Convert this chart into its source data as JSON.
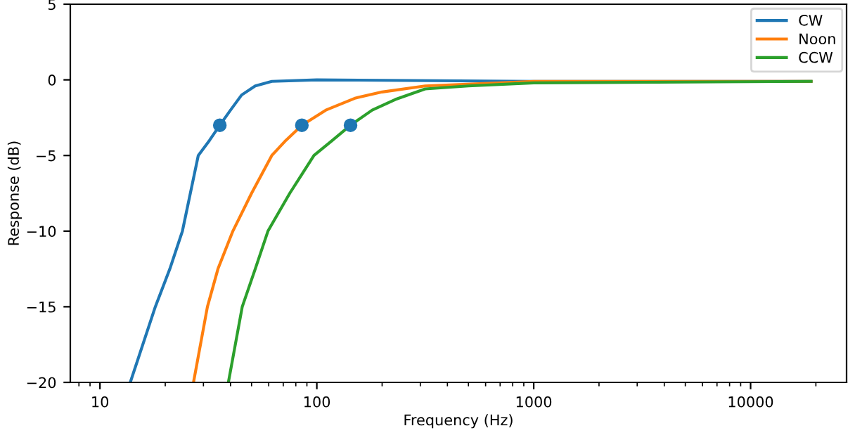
{
  "chart_data": {
    "type": "line",
    "xlabel": "Frequency (Hz)",
    "ylabel": "Response (dB)",
    "log": "x",
    "xlim": [
      7.3,
      27700
    ],
    "xticks": [
      10,
      100,
      1000,
      10000
    ],
    "ylim": [
      -20,
      5
    ],
    "yticks": [
      -20,
      -15,
      -10,
      -5,
      0,
      5
    ],
    "grid": false,
    "legend": "top right",
    "marker": "none",
    "line_style": "solid",
    "series": [
      {
        "name": "CW",
        "color": "#1f77b4",
        "x": [
          13.8,
          18,
          21,
          24,
          28.4,
          32,
          35.7,
          40,
          45,
          52,
          62,
          100,
          1000,
          19000
        ],
        "values": [
          -20,
          -15,
          -12.5,
          -10,
          -5,
          -4,
          -3,
          -2,
          -1,
          -0.4,
          -0.1,
          0,
          -0.1,
          -0.1
        ]
      },
      {
        "name": "Noon",
        "color": "#ff7f0e",
        "x": [
          27,
          31.3,
          35,
          41,
          50,
          62,
          72,
          85.3,
          110,
          151,
          200,
          316,
          1000,
          19000
        ],
        "values": [
          -20,
          -15,
          -12.5,
          -10,
          -7.5,
          -5,
          -4,
          -3,
          -2,
          -1.2,
          -0.8,
          -0.4,
          -0.1,
          -0.1
        ]
      },
      {
        "name": "CCW",
        "color": "#2ca02c",
        "x": [
          39.1,
          45.3,
          52,
          59.5,
          75,
          97,
          118,
          143,
          180,
          230,
          316,
          500,
          1000,
          19000
        ],
        "values": [
          -20,
          -15,
          -12.5,
          -10,
          -7.5,
          -5,
          -4,
          -3,
          -2,
          -1.3,
          -0.6,
          -0.4,
          -0.2,
          -0.1
        ]
      },
      {
        "type": "scatter",
        "marker": "circle",
        "color": "#1f77b4",
        "x": [
          35.7,
          85.3,
          143
        ],
        "values": [
          -3,
          -3,
          -3
        ]
      }
    ]
  }
}
